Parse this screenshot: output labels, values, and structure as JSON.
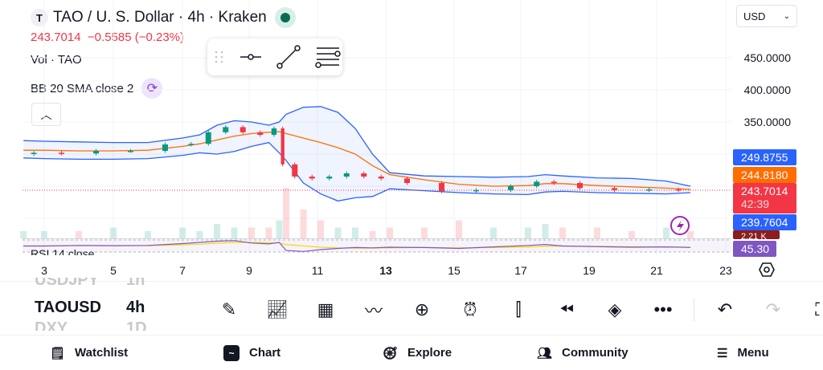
{
  "header": {
    "symbol_logo": "T",
    "title": "TAO / U. S. Dollar · 4h · Kraken",
    "price": "243.7014",
    "change": "−0.5585 (−0.23%)",
    "volume_label": "Vol · TAO",
    "bb_label": "BB 20 SMA close 2",
    "rsi_label": "RSI 14 close",
    "currency": "USD"
  },
  "colors": {
    "up": "#089981",
    "down": "#f23645",
    "band": "#2962ff",
    "basis": "#ff6d00",
    "rsi": "#7e57c2",
    "rsi_ma": "#f5d90a"
  },
  "price_scale": {
    "labels": [
      "450.0000",
      "400.0000",
      "350.0000"
    ],
    "tags": [
      {
        "value": "249.8755",
        "color": "#2962ff"
      },
      {
        "value": "244.8180",
        "color": "#ff6d00"
      },
      {
        "value": "243.7014",
        "sub": "42:39",
        "color": "#f23645"
      },
      {
        "value": "239.7604",
        "color": "#2962ff"
      },
      {
        "value": "2.21 K",
        "color": "#8b1d1d"
      },
      {
        "value": "45.30",
        "color": "#7e57c2"
      }
    ]
  },
  "x_axis": {
    "labels": [
      "3",
      "5",
      "7",
      "9",
      "11",
      "13",
      "15",
      "17",
      "19",
      "21",
      "23"
    ]
  },
  "chart_data": {
    "type": "candlestick",
    "ylim": [
      210,
      480
    ],
    "x": [
      2.4,
      3,
      4,
      5,
      6,
      7,
      7.5,
      8,
      8.5,
      9,
      9.5,
      9.8,
      10,
      10.5,
      11,
      11.5,
      12,
      12.5,
      13,
      14,
      15,
      16,
      17,
      17.5,
      18,
      19,
      20,
      21,
      21.7
    ],
    "close": [
      300,
      302,
      301,
      305,
      305,
      315,
      316,
      334,
      342,
      334,
      330,
      340,
      284,
      265,
      262,
      265,
      270,
      265,
      262,
      255,
      242,
      244,
      250,
      257,
      255,
      247,
      244,
      245,
      244
    ],
    "upper": [
      321,
      320,
      319,
      318,
      318,
      325,
      330,
      345,
      352,
      350,
      345,
      350,
      362,
      373,
      374,
      365,
      340,
      300,
      271,
      266,
      265,
      264,
      265,
      268,
      266,
      263,
      262,
      258,
      250
    ],
    "basis": [
      306,
      306,
      305,
      305,
      306,
      312,
      316,
      322,
      328,
      332,
      334,
      335,
      332,
      325,
      318,
      310,
      300,
      282,
      268,
      260,
      253,
      250,
      251,
      254,
      254,
      251,
      249,
      247,
      245
    ],
    "lower": [
      294,
      293,
      292,
      292,
      293,
      298,
      302,
      300,
      304,
      312,
      318,
      302,
      290,
      255,
      238,
      227,
      232,
      234,
      246,
      243,
      240,
      238,
      237,
      241,
      242,
      240,
      239,
      238,
      240
    ],
    "volume": [
      2,
      2,
      2,
      3,
      2,
      3,
      2,
      4,
      3,
      3,
      3,
      5,
      14,
      8,
      5,
      3,
      3,
      2,
      3,
      3,
      5,
      3,
      3,
      4,
      3,
      3,
      2,
      3,
      2
    ],
    "rsi": [
      50,
      50,
      52,
      51,
      52,
      58,
      62,
      66,
      68,
      60,
      57,
      62,
      35,
      32,
      38,
      42,
      45,
      44,
      46,
      45,
      42,
      47,
      52,
      55,
      50,
      48,
      46,
      47,
      45.3
    ],
    "rsi_ma": [
      50,
      50,
      51,
      51,
      51,
      54,
      56,
      59,
      62,
      62,
      61,
      60,
      55,
      50,
      46,
      44,
      43,
      43,
      44,
      45,
      44,
      45,
      47,
      49,
      50,
      49,
      48,
      47,
      46
    ]
  },
  "picker": [
    {
      "symbol": "USDJPY",
      "interval": "1h"
    },
    {
      "symbol": "TAOUSD",
      "interval": "4h"
    },
    {
      "symbol": "DXY",
      "interval": "1D"
    }
  ],
  "nav": {
    "watchlist": "Watchlist",
    "chart": "Chart",
    "explore": "Explore",
    "community": "Community",
    "menu": "Menu"
  }
}
